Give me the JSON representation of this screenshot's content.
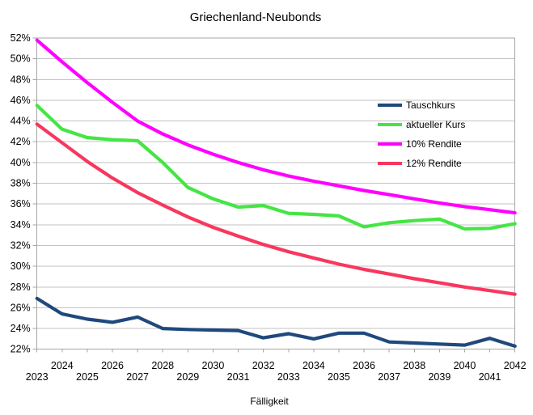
{
  "title": "Griechenland-Neubonds",
  "xlabel": "Fälligkeit",
  "chart_data": {
    "type": "line",
    "categories": [
      "2023",
      "2024",
      "2025",
      "2026",
      "2027",
      "2028",
      "2029",
      "2030",
      "2031",
      "2032",
      "2033",
      "2034",
      "2035",
      "2036",
      "2037",
      "2038",
      "2039",
      "2040",
      "2041",
      "2042"
    ],
    "series": [
      {
        "name": "Tauschkurs",
        "color": "#1F497D",
        "values": [
          26.9,
          25.4,
          24.9,
          24.6,
          25.1,
          24.0,
          23.9,
          23.85,
          23.8,
          23.1,
          23.5,
          23.0,
          23.55,
          23.55,
          22.7,
          22.6,
          22.5,
          22.4,
          23.05,
          22.3
        ]
      },
      {
        "name": "aktueller Kurs",
        "color": "#44E544",
        "values": [
          45.5,
          43.2,
          42.4,
          42.2,
          42.1,
          40.0,
          37.6,
          36.5,
          35.7,
          35.85,
          35.1,
          35.0,
          34.85,
          33.8,
          34.2,
          34.4,
          34.55,
          33.6,
          33.65,
          34.1
        ]
      },
      {
        "name": "10% Rendite",
        "color": "#FF00FF",
        "values": [
          51.8,
          49.7,
          47.7,
          45.8,
          44.0,
          42.75,
          41.7,
          40.8,
          40.0,
          39.3,
          38.7,
          38.2,
          37.75,
          37.3,
          36.9,
          36.5,
          36.1,
          35.75,
          35.45,
          35.15
        ]
      },
      {
        "name": "12% Rendite",
        "color": "#F8375D",
        "values": [
          43.7,
          41.9,
          40.1,
          38.5,
          37.1,
          35.9,
          34.75,
          33.75,
          32.9,
          32.1,
          31.4,
          30.8,
          30.2,
          29.7,
          29.25,
          28.8,
          28.4,
          28.0,
          27.65,
          27.3
        ]
      }
    ],
    "ylim": [
      22,
      52
    ],
    "ytick_step": 2,
    "ytick_labels": [
      "52%",
      "50%",
      "48%",
      "46%",
      "44%",
      "42%",
      "40%",
      "38%",
      "36%",
      "34%",
      "32%",
      "30%",
      "28%",
      "26%",
      "24%",
      "22%"
    ],
    "grid": true,
    "legend_position": "inside-top-right",
    "grid_color": "#C3C3C3",
    "axis_color": "#A6A6A6"
  }
}
